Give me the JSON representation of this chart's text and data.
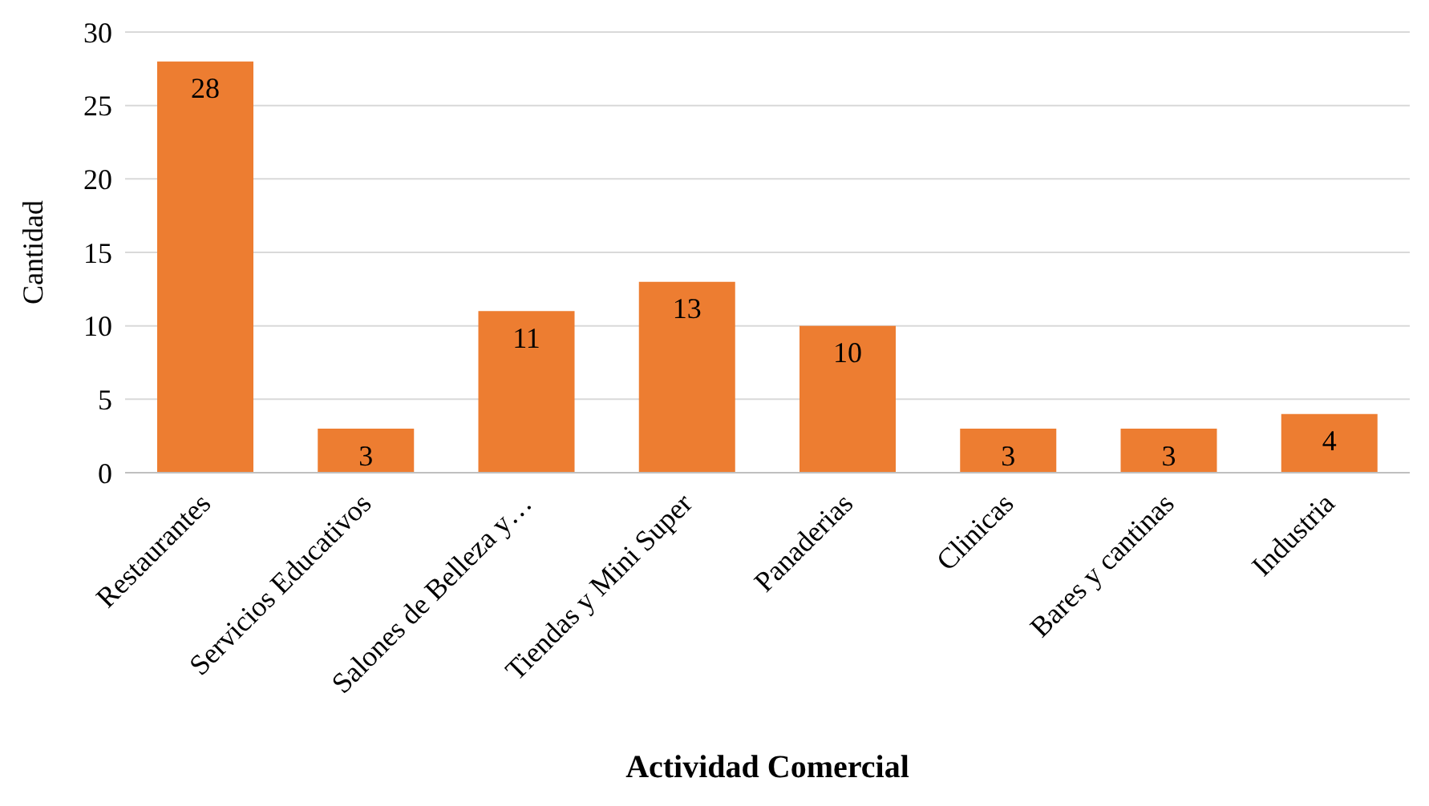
{
  "chart_data": {
    "type": "bar",
    "xlabel": "Actividad Comercial",
    "ylabel": "Cantidad",
    "categories": [
      "Restaurantes",
      "Servicios Educativos",
      "Salones de Belleza y…",
      "Tiendas y Mini Super",
      "Panaderias",
      "Clinicas",
      "Bares y cantinas",
      "Industria"
    ],
    "values": [
      28,
      3,
      11,
      13,
      10,
      3,
      3,
      4
    ],
    "color": "#ed7d31",
    "ylim": [
      0,
      30
    ],
    "yticks": [
      0,
      5,
      10,
      15,
      20,
      25,
      30
    ],
    "grid": "y",
    "data_labels": true
  }
}
